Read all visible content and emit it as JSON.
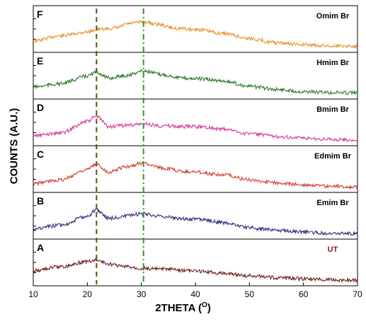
{
  "chart_data": {
    "type": "line",
    "xlabel_main": "2THETA (",
    "xlabel_sup": "O",
    "xlabel_end": ")",
    "ylabel": "COUNTS (A.U.)",
    "xlim": [
      10,
      70
    ],
    "xticks": [
      "10",
      "20",
      "30",
      "40",
      "50",
      "60",
      "70"
    ],
    "reference_lines": [
      {
        "x": 21.7,
        "style": "dashed",
        "color": "#4d5a0a"
      },
      {
        "x": 30.4,
        "style": "dashdot",
        "color": "#2a9a2a"
      }
    ],
    "series": [
      {
        "letter": "F",
        "name": "Omim Br",
        "color": "#e8912a",
        "x": [
          10,
          15,
          20,
          21.7,
          25,
          28,
          30.4,
          33,
          36,
          40,
          45,
          50,
          55,
          60,
          65,
          70
        ],
        "y": [
          0.25,
          0.45,
          0.6,
          0.7,
          0.75,
          0.93,
          1.0,
          0.9,
          0.75,
          0.7,
          0.55,
          0.35,
          0.18,
          0.1,
          0.06,
          0.05
        ]
      },
      {
        "letter": "E",
        "name": "Hmim Br",
        "color": "#2a7a2a",
        "x": [
          10,
          15,
          20,
          21.7,
          24,
          27,
          30.4,
          34,
          38,
          40,
          45,
          50,
          55,
          60,
          65,
          70
        ],
        "y": [
          0.28,
          0.4,
          0.7,
          0.85,
          0.62,
          0.72,
          0.9,
          0.75,
          0.62,
          0.6,
          0.52,
          0.3,
          0.18,
          0.1,
          0.06,
          0.05
        ]
      },
      {
        "letter": "D",
        "name": "Bmim Br",
        "color": "#d63c96",
        "x": [
          10,
          15,
          20,
          21.7,
          24,
          27,
          30.4,
          34,
          38,
          41,
          45,
          50,
          55,
          60,
          65,
          70
        ],
        "y": [
          0.2,
          0.3,
          0.75,
          0.95,
          0.55,
          0.6,
          0.65,
          0.58,
          0.55,
          0.55,
          0.45,
          0.28,
          0.17,
          0.1,
          0.05,
          0.02
        ]
      },
      {
        "letter": "C",
        "name": "Edmim Br",
        "color": "#d43a2a",
        "x": [
          10,
          15,
          20,
          21.7,
          24,
          27,
          30.4,
          34,
          38,
          40,
          45,
          50,
          55,
          60,
          65,
          70
        ],
        "y": [
          0.15,
          0.3,
          0.7,
          0.9,
          0.6,
          0.8,
          0.95,
          0.75,
          0.62,
          0.6,
          0.5,
          0.3,
          0.18,
          0.1,
          0.05,
          0.02
        ]
      },
      {
        "letter": "B",
        "name": "Emim Br",
        "color": "#2a2f7a",
        "x": [
          10,
          15,
          20,
          21.7,
          24,
          27,
          30.4,
          34,
          38,
          41,
          45,
          50,
          55,
          60,
          65,
          70
        ],
        "y": [
          0.2,
          0.35,
          0.7,
          0.95,
          0.62,
          0.7,
          0.8,
          0.68,
          0.6,
          0.58,
          0.45,
          0.25,
          0.15,
          0.08,
          0.04,
          0.02
        ]
      },
      {
        "letter": "A",
        "name": "UT",
        "color": "#6a1a1a",
        "x": [
          10,
          15,
          20,
          21.7,
          24,
          27,
          30.4,
          34,
          40,
          45,
          50,
          55,
          60,
          65,
          70
        ],
        "y": [
          0.4,
          0.55,
          0.75,
          0.8,
          0.65,
          0.55,
          0.48,
          0.45,
          0.38,
          0.3,
          0.2,
          0.12,
          0.08,
          0.04,
          0.02
        ]
      }
    ]
  }
}
